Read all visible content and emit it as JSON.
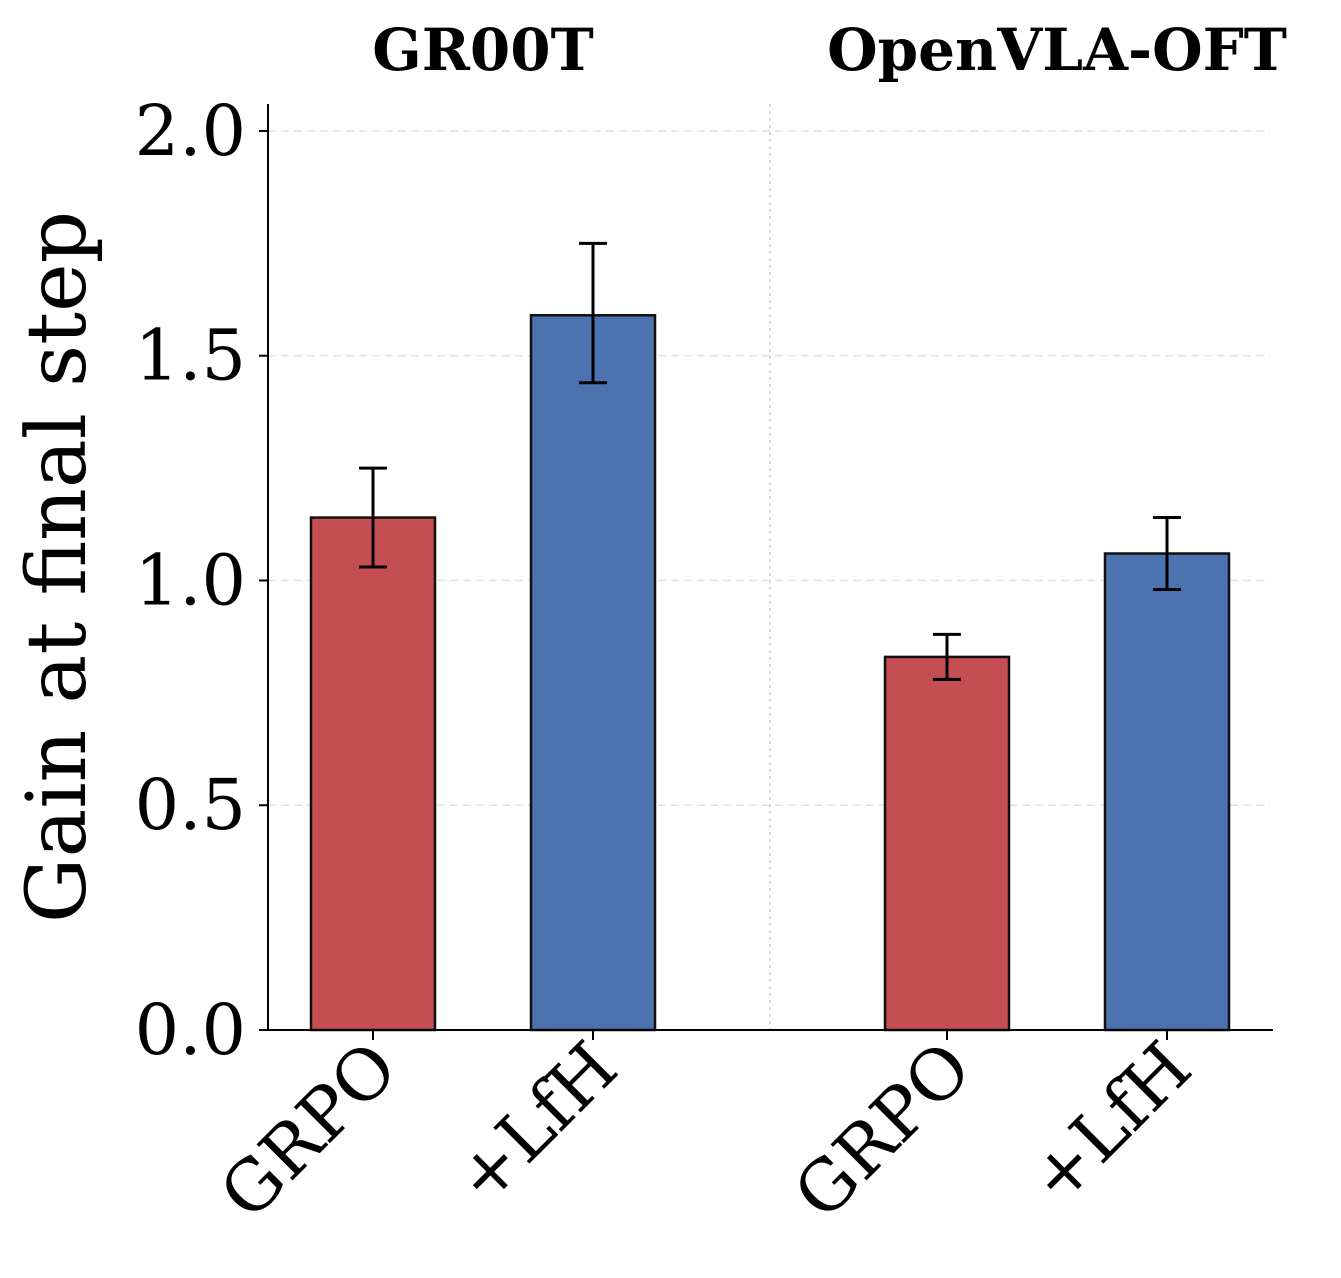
{
  "chart_data": {
    "type": "bar",
    "groups": [
      "GR00T",
      "OpenVLA-OFT"
    ],
    "categories": [
      "GRPO",
      "+LfH"
    ],
    "ylabel": "Gain at final step",
    "ylim": [
      0,
      2.06
    ],
    "yticks": [
      "0.0",
      "0.5",
      "1.0",
      "1.5",
      "2.0"
    ],
    "grid": true,
    "colors": {
      "GRPO": "#c44e52",
      "+LfH": "#4c72b0"
    },
    "data": [
      {
        "group": "GR00T",
        "category": "GRPO",
        "value": 1.14,
        "err_low": 1.03,
        "err_high": 1.25
      },
      {
        "group": "GR00T",
        "category": "+LfH",
        "value": 1.59,
        "err_low": 1.44,
        "err_high": 1.75
      },
      {
        "group": "OpenVLA-OFT",
        "category": "GRPO",
        "value": 0.83,
        "err_low": 0.78,
        "err_high": 0.88
      },
      {
        "group": "OpenVLA-OFT",
        "category": "+LfH",
        "value": 1.06,
        "err_low": 0.98,
        "err_high": 1.14
      }
    ]
  }
}
